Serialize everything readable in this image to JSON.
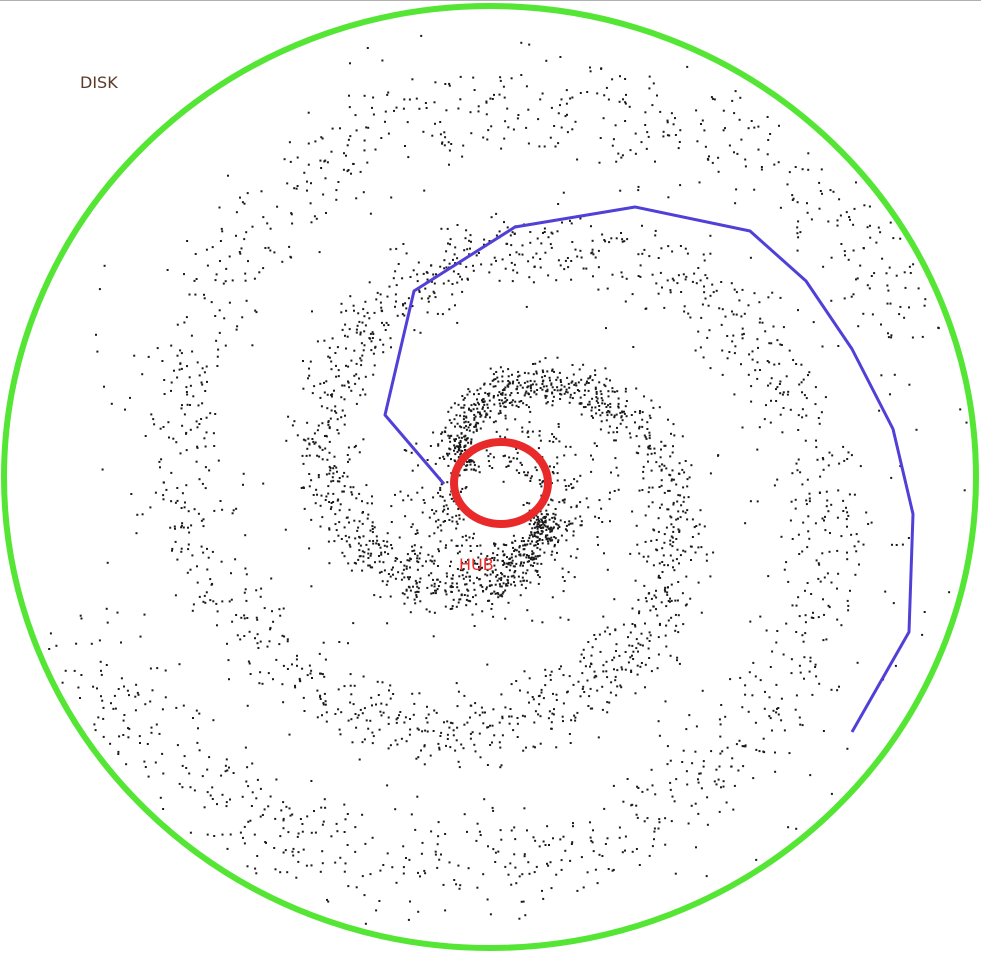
{
  "labels": {
    "disk": "DISK",
    "hub": "HUB"
  },
  "colors": {
    "disk_outline": "#55e635",
    "hub_outline": "#e82a2a",
    "spiral_line": "#5040d8",
    "stars": "#1a1a1a",
    "disk_label": "#5a3a28",
    "hub_label": "#e82a2a",
    "top_rule": "#b0b0b0"
  },
  "spiral_arm": {
    "name": "",
    "segment_count": 12
  }
}
